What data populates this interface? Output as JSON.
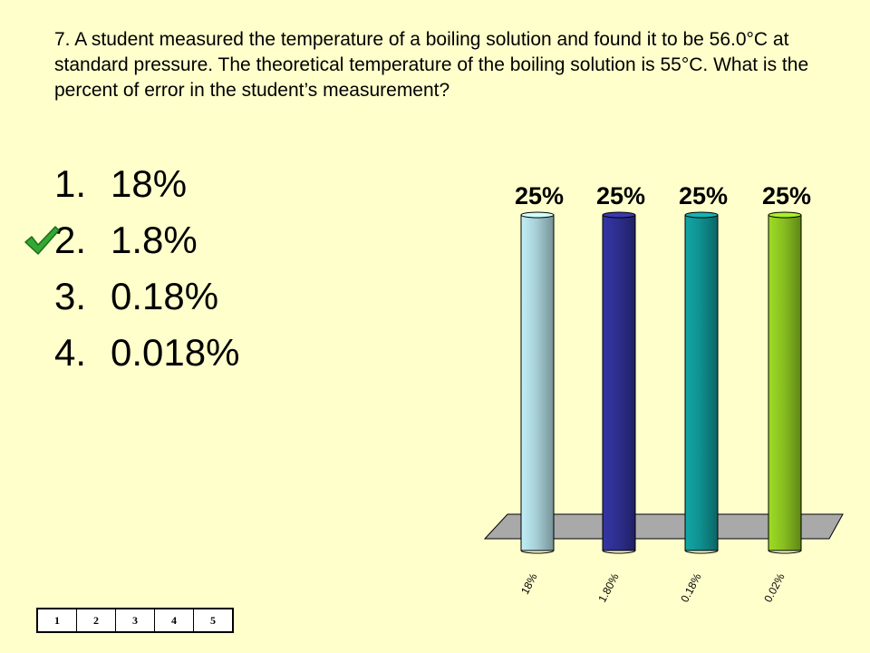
{
  "question": "7.  A student measured the temperature of a boiling solution and found it to be 56.0°C at standard pressure.  The theoretical temperature of the boiling solution is 55°C.  What is the percent of error in the student’s measurement?",
  "answers": [
    {
      "num": "1.",
      "text": "18%"
    },
    {
      "num": "2.",
      "text": "1.8%",
      "correct": true
    },
    {
      "num": "3.",
      "text": "0.18%"
    },
    {
      "num": "4.",
      "text": "0.018%"
    }
  ],
  "correct_icon": "checkmark-icon",
  "pager": [
    "1",
    "2",
    "3",
    "4",
    "5"
  ],
  "colors": {
    "background": "#ffffcc",
    "check": "#33a833",
    "floor": "#a9a9a9"
  },
  "chart_data": {
    "type": "bar",
    "style": "3d-cylinder",
    "categories": [
      "18%",
      "1.80%",
      "0.18%",
      "0.02%"
    ],
    "values": [
      25,
      25,
      25,
      25
    ],
    "value_labels": [
      "25%",
      "25%",
      "25%",
      "25%"
    ],
    "colors": [
      "#a8d0d8",
      "#2e2e8f",
      "#109090",
      "#88c020"
    ],
    "ylim": [
      0,
      25
    ],
    "grid": false,
    "legend": "none"
  }
}
